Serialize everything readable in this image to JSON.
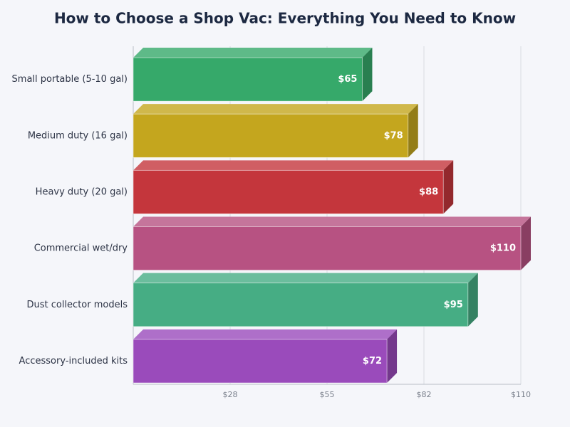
{
  "chart_data": {
    "type": "bar3d",
    "orientation": "horizontal",
    "title": "How to Choose a Shop Vac: Everything You Need to Know",
    "categories": [
      "Small portable (5-10 gal)",
      "Medium duty (16 gal)",
      "Heavy duty (20 gal)",
      "Commercial wet/dry",
      "Dust collector models",
      "Accessory-included kits"
    ],
    "values": [
      65,
      78,
      88,
      110,
      95,
      72
    ],
    "value_labels": [
      "$65",
      "$78",
      "$88",
      "$110",
      "$95",
      "$72"
    ],
    "colors": [
      "#36a96a",
      "#c4a61e",
      "#c4363c",
      "#b75282",
      "#46ad84",
      "#9a4bbb"
    ],
    "xlim": [
      0,
      110
    ],
    "xticks": [
      {
        "value": 27.5,
        "label": "$28"
      },
      {
        "value": 55,
        "label": "$55"
      },
      {
        "value": 82.5,
        "label": "$82"
      },
      {
        "value": 110,
        "label": "$110"
      }
    ],
    "grid": true
  }
}
